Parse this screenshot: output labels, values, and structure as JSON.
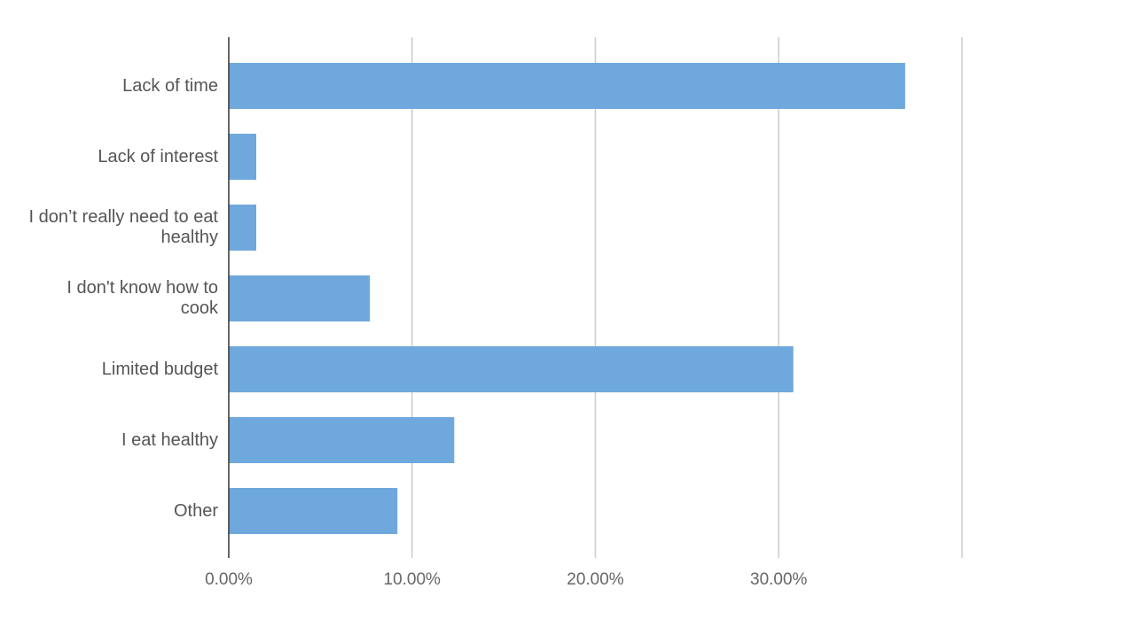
{
  "chart_data": {
    "type": "bar",
    "orientation": "horizontal",
    "categories": [
      "Lack of time",
      "Lack of interest",
      "I don’t really need to eat healthy",
      "I don't know how to cook",
      "Limited budget",
      "I eat healthy",
      "Other"
    ],
    "values": [
      36.9,
      1.5,
      1.5,
      7.7,
      30.8,
      12.3,
      9.2
    ],
    "color": "#6fa8dc",
    "xlim": [
      0,
      40
    ],
    "xticks": [
      {
        "value": 0,
        "label": "0.00%"
      },
      {
        "value": 10,
        "label": "10.00%"
      },
      {
        "value": 20,
        "label": "20.00%"
      },
      {
        "value": 30,
        "label": "30.00%"
      }
    ],
    "grid": true
  }
}
